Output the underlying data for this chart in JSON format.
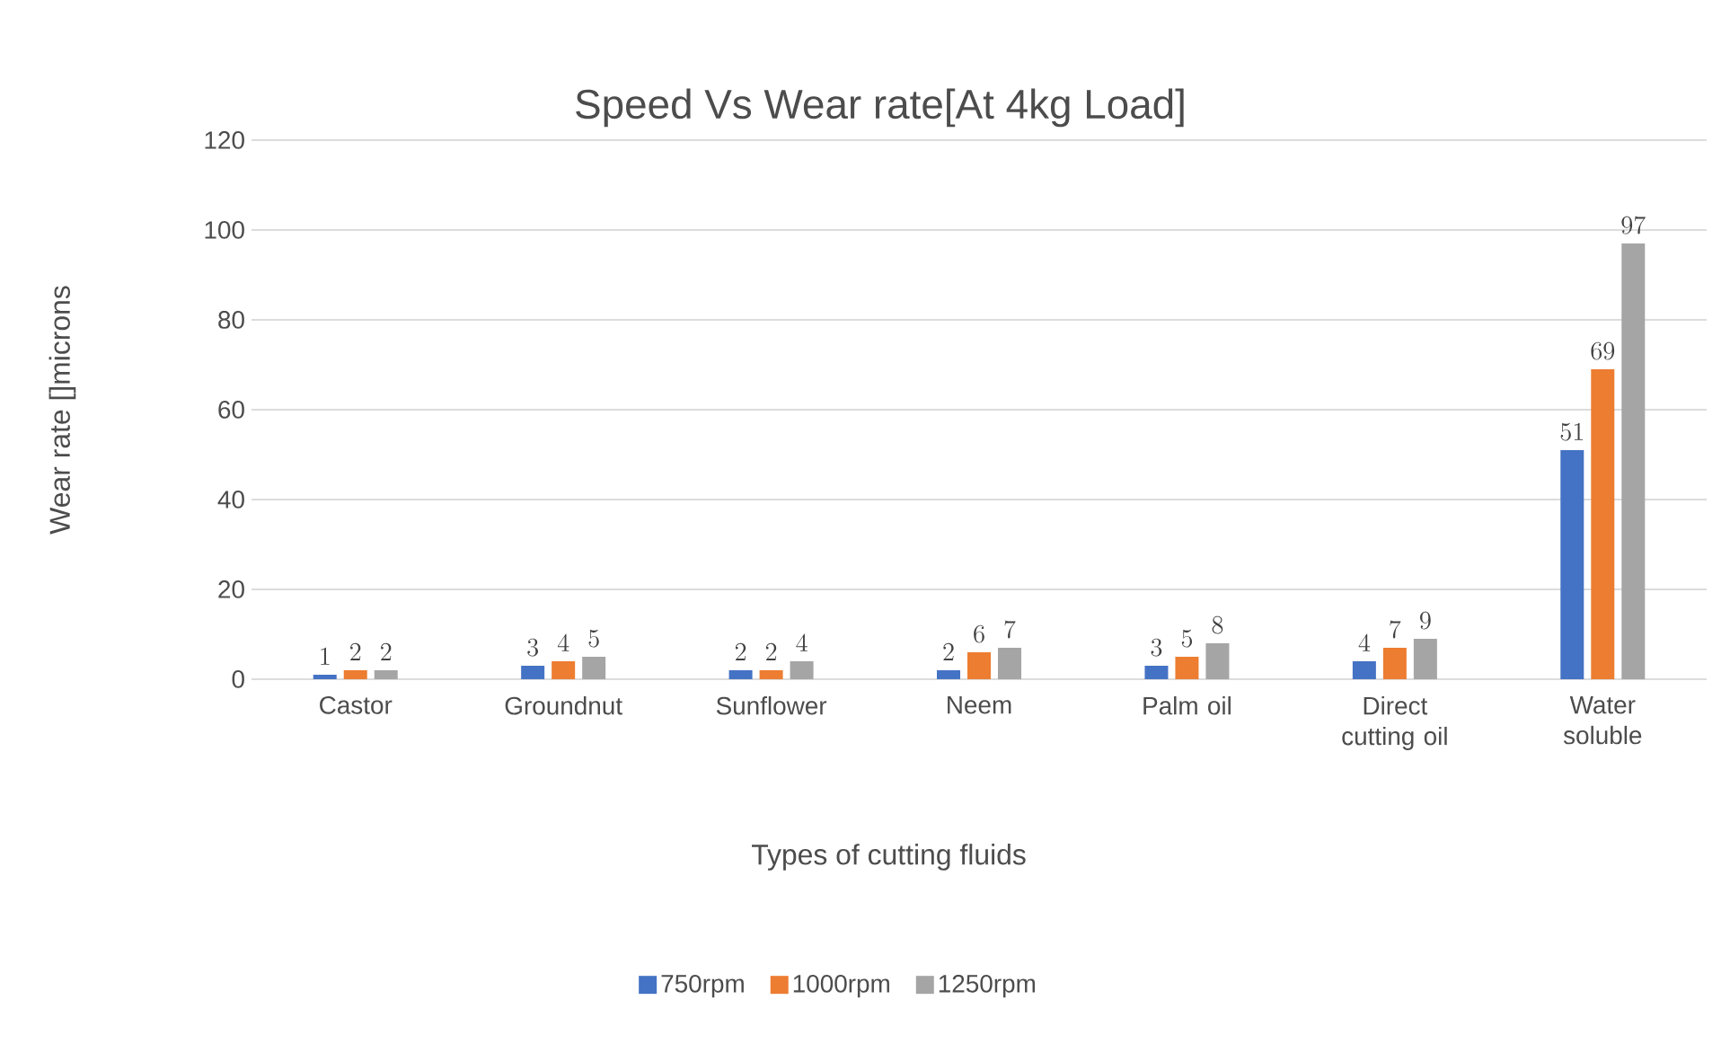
{
  "chart_data": {
    "type": "bar",
    "title": "Speed Vs Wear rate[At 4kg Load]",
    "xlabel": "Types of cutting fluids",
    "ylabel": "Wear rate []microns",
    "categories": [
      "Castor",
      "Groundnut",
      "Sunflower",
      "Neem",
      "Palm oil",
      "Direct cutting oil",
      "Water soluble"
    ],
    "series": [
      {
        "name": "750rpm",
        "color": "#4472c4",
        "values": [
          1,
          3,
          2,
          2,
          3,
          4,
          51
        ]
      },
      {
        "name": "1000rpm",
        "color": "#ed7d31",
        "values": [
          2,
          4,
          2,
          6,
          5,
          7,
          69
        ]
      },
      {
        "name": "1250rpm",
        "color": "#a5a5a5",
        "values": [
          2,
          5,
          4,
          7,
          8,
          9,
          97
        ]
      }
    ],
    "ylim": [
      0,
      120
    ],
    "yticks": [
      0,
      20,
      40,
      60,
      80,
      100,
      120
    ],
    "grid": "y",
    "legend": "bottom",
    "data_labels": true
  }
}
